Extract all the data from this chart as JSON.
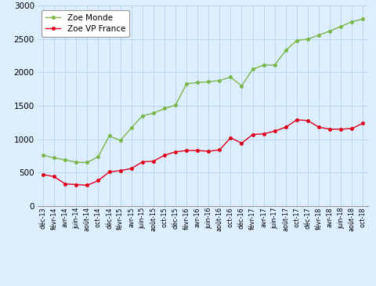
{
  "labels": [
    "déc-13",
    "févr-14",
    "avr-14",
    "juin-14",
    "août-14",
    "oct-14",
    "déc-14",
    "févr-15",
    "avr-15",
    "juin-15",
    "août-15",
    "oct-15",
    "déc-15",
    "févr-16",
    "avr-16",
    "juin-16",
    "août-16",
    "oct-16",
    "déc-16",
    "févr-17",
    "avr-17",
    "juin-17",
    "août-17",
    "oct-17",
    "déc-17",
    "févr-18",
    "avr-18",
    "juin-18",
    "août-18",
    "oct-18"
  ],
  "zoe_monde": [
    760,
    720,
    690,
    655,
    650,
    740,
    1050,
    980,
    1170,
    1350,
    1390,
    1460,
    1510,
    1830,
    1850,
    1860,
    1880,
    1930,
    1800,
    2050,
    2110,
    2110,
    2330,
    2480,
    2500,
    2560,
    2620,
    2690,
    2760,
    2800
  ],
  "zoe_vp_france": [
    470,
    440,
    330,
    320,
    310,
    380,
    510,
    530,
    560,
    660,
    670,
    760,
    810,
    830,
    830,
    820,
    840,
    1020,
    940,
    1070,
    1080,
    1120,
    1180,
    1290,
    1280,
    1180,
    1150,
    1150,
    1160,
    1240
  ],
  "color_monde": "#7ab648",
  "color_france": "#e0001a",
  "bg_color": "#ddeeff",
  "grid_color": "#b8d8f0",
  "ylim": [
    0,
    3000
  ],
  "yticks": [
    0,
    500,
    1000,
    1500,
    2000,
    2500,
    3000
  ],
  "label_monde": "Zoe Monde",
  "label_france": "Zoe VP France"
}
